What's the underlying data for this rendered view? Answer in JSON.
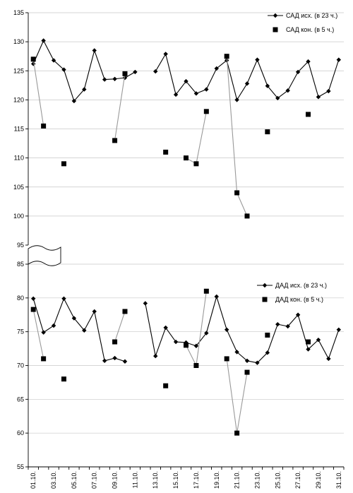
{
  "chart_data": [
    {
      "type": "line",
      "x_categories": [
        "01.10.",
        "02.10.",
        "03.10.",
        "04.10.",
        "05.10.",
        "06.10.",
        "07.10.",
        "08.10.",
        "09.10.",
        "10.10.",
        "11.10.",
        "12.10.",
        "13.10.",
        "14.10.",
        "15.10.",
        "16.10.",
        "17.10.",
        "18.10.",
        "19.10.",
        "20.10.",
        "21.10.",
        "22.10.",
        "23.10.",
        "24.10.",
        "25.10.",
        "26.10.",
        "27.10.",
        "28.10.",
        "29.10.",
        "30.10.",
        "31.10."
      ],
      "x_tick_labels": [
        "01.10.",
        "03.10.",
        "05.10.",
        "07.10.",
        "09.10.",
        "11.10.",
        "13.10.",
        "15.10.",
        "17.10.",
        "19.10.",
        "21.10.",
        "23.10.",
        "25.10.",
        "27.10.",
        "29.10.",
        "31.10."
      ],
      "ylim": [
        95,
        135
      ],
      "y_ticks": [
        95,
        100,
        105,
        110,
        115,
        120,
        125,
        130,
        135
      ],
      "grid": true,
      "legend_position": "top-right",
      "series": [
        {
          "name": "САД исх. (в 23 ч.)",
          "marker": "diamond",
          "color": "#000000",
          "values": [
            126.2,
            130.2,
            126.8,
            125.2,
            119.8,
            121.8,
            128.5,
            123.5,
            123.6,
            123.8,
            124.8,
            null,
            124.9,
            127.9,
            120.9,
            123.2,
            121.1,
            121.8,
            125.4,
            126.8,
            120.0,
            122.8,
            126.9,
            122.4,
            120.3,
            121.6,
            124.8,
            126.6,
            120.5,
            121.5,
            126.9
          ]
        },
        {
          "name": "САД кон. (в 5 ч.)",
          "marker": "square",
          "color": "#000000",
          "line_color": "#999999",
          "values": [
            127.0,
            115.5,
            null,
            109.0,
            null,
            null,
            null,
            null,
            113.0,
            124.5,
            null,
            null,
            null,
            111.0,
            null,
            110.0,
            109.0,
            118.0,
            null,
            127.5,
            104.0,
            100.0,
            null,
            114.5,
            null,
            null,
            null,
            117.5,
            null,
            null,
            null
          ]
        }
      ]
    },
    {
      "type": "line",
      "x_categories": [
        "01.10.",
        "02.10.",
        "03.10.",
        "04.10.",
        "05.10.",
        "06.10.",
        "07.10.",
        "08.10.",
        "09.10.",
        "10.10.",
        "11.10.",
        "12.10.",
        "13.10.",
        "14.10.",
        "15.10.",
        "16.10.",
        "17.10.",
        "18.10.",
        "19.10.",
        "20.10.",
        "21.10.",
        "22.10.",
        "23.10.",
        "24.10.",
        "25.10.",
        "26.10.",
        "27.10.",
        "28.10.",
        "29.10.",
        "30.10.",
        "31.10."
      ],
      "x_tick_labels": [
        "01.10.",
        "03.10.",
        "05.10.",
        "07.10.",
        "09.10.",
        "11.10.",
        "13.10.",
        "15.10.",
        "17.10.",
        "19.10.",
        "21.10.",
        "23.10.",
        "25.10.",
        "27.10.",
        "29.10.",
        "31.10."
      ],
      "ylim": [
        55,
        85
      ],
      "y_ticks": [
        55,
        60,
        65,
        70,
        75,
        80,
        85
      ],
      "grid": true,
      "legend_position": "top-right",
      "series": [
        {
          "name": "ДАД исх. (в 23 ч.)",
          "marker": "diamond",
          "color": "#000000",
          "values": [
            79.9,
            74.9,
            75.9,
            79.9,
            77.0,
            75.2,
            78.0,
            70.7,
            71.1,
            70.6,
            null,
            79.2,
            71.4,
            75.6,
            73.5,
            73.4,
            72.9,
            74.8,
            80.2,
            75.3,
            72.0,
            70.7,
            70.4,
            71.9,
            76.1,
            75.8,
            77.5,
            72.4,
            73.8,
            71.0,
            75.3
          ]
        },
        {
          "name": "ДАД кон. (в 5 ч.)",
          "marker": "square",
          "color": "#000000",
          "line_color": "#999999",
          "values": [
            78.3,
            71.0,
            null,
            68.0,
            null,
            null,
            null,
            null,
            73.5,
            78.0,
            null,
            null,
            null,
            67.0,
            null,
            73.0,
            70.0,
            81.0,
            null,
            71.0,
            60.0,
            69.0,
            null,
            74.5,
            null,
            null,
            null,
            73.5,
            null,
            null,
            null
          ]
        }
      ]
    }
  ]
}
